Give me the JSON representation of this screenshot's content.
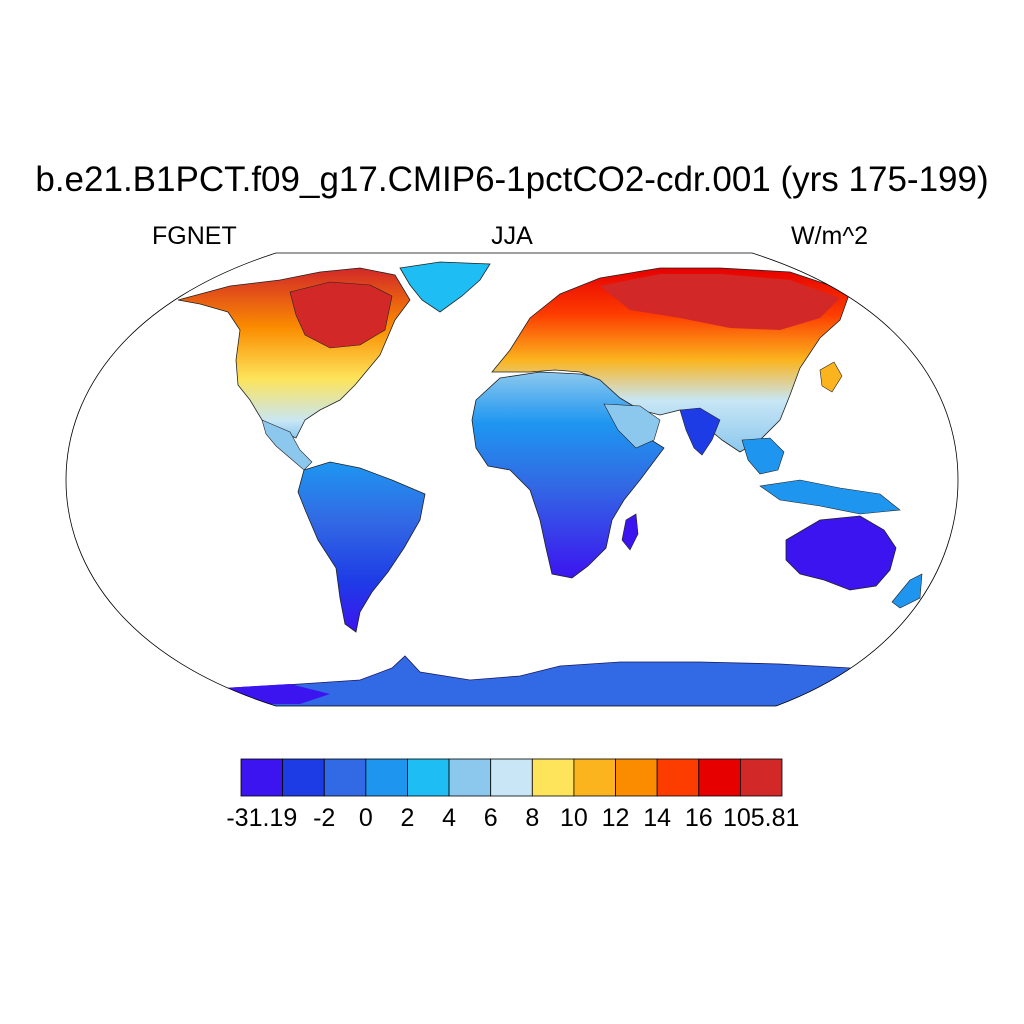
{
  "title": "b.e21.B1PCT.f09_g17.CMIP6-1pctCO2-cdr.001 (yrs 175-199)",
  "subtitle_left": "FGNET",
  "subtitle_center": "JJA",
  "subtitle_right": "W/m^2",
  "colorbar": {
    "bins": [
      {
        "color": "#3c14f0"
      },
      {
        "color": "#1e3ce6"
      },
      {
        "color": "#3269e4"
      },
      {
        "color": "#1e96f0"
      },
      {
        "color": "#1ebef5"
      },
      {
        "color": "#8cc8ee"
      },
      {
        "color": "#c8e6f5"
      },
      {
        "color": "#fde45a"
      },
      {
        "color": "#fbb41e"
      },
      {
        "color": "#fb8c00"
      },
      {
        "color": "#fd3c00"
      },
      {
        "color": "#e60000"
      },
      {
        "color": "#d22828"
      }
    ],
    "labels": [
      "-31.19",
      "-2",
      "0",
      "2",
      "4",
      "6",
      "8",
      "10",
      "12",
      "14",
      "16",
      "105.81"
    ]
  },
  "map": {
    "projection": "robinson",
    "land_regions": [
      {
        "name": "Antarctica",
        "color": "#3269e4"
      },
      {
        "name": "South America",
        "color": "#3269e4"
      },
      {
        "name": "Africa",
        "color": "#3269e4"
      },
      {
        "name": "Australia",
        "color": "#3c14f0"
      },
      {
        "name": "North America",
        "color": "#fbb41e"
      },
      {
        "name": "Greenland",
        "color": "#1ebef5"
      },
      {
        "name": "Eurasia",
        "color": "#fb8c00"
      }
    ]
  }
}
